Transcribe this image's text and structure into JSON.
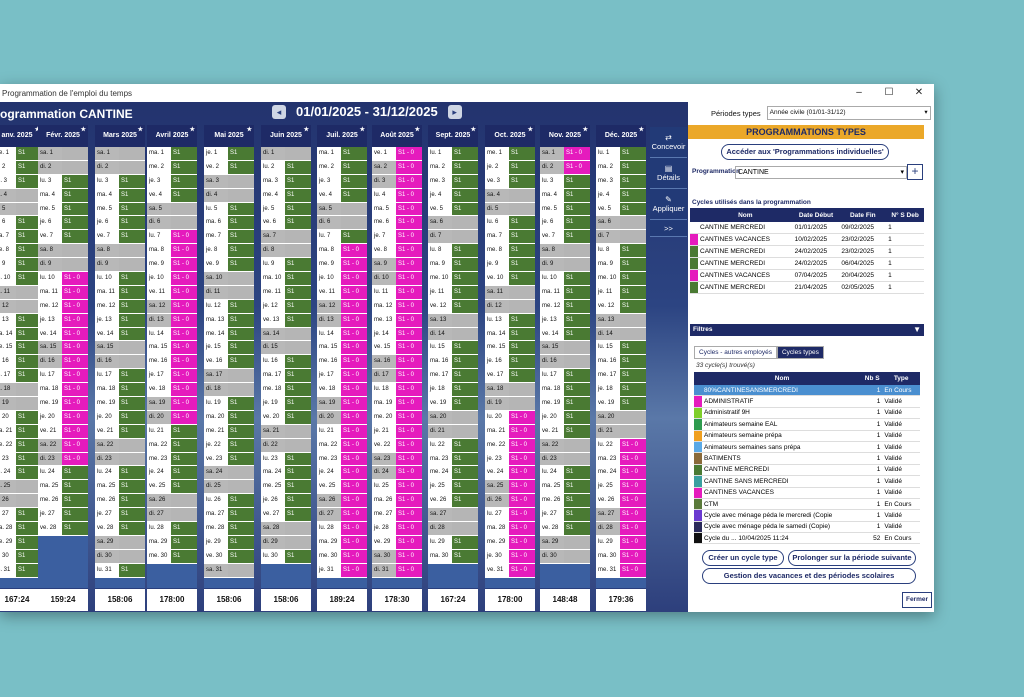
{
  "window": {
    "title": "Programmation de l'emploi du temps"
  },
  "header": {
    "programmation_title": "ogrammation CANTINE",
    "date_range": "01/01/2025 - 31/12/2025"
  },
  "months": [
    {
      "label": "anv. 2025",
      "total": "167:24",
      "start_day": 2,
      "ndays": 31,
      "pink": [],
      "gray_days": [
        0,
        1,
        4,
        5,
        6,
        7,
        8,
        9,
        12,
        13,
        14,
        15,
        16,
        19,
        20,
        21,
        22,
        23,
        26,
        27,
        28,
        29,
        30
      ]
    },
    {
      "label": "Févr. 2025",
      "total": "159:24",
      "start_day": 5,
      "ndays": 28,
      "pink": [
        9,
        10,
        11,
        12,
        13,
        14,
        15,
        16,
        17,
        18,
        19,
        20,
        21,
        22
      ],
      "gray_days": []
    },
    {
      "label": "Mars 2025",
      "total": "158:06",
      "start_day": 5,
      "ndays": 31,
      "pink": [],
      "gray_days": []
    },
    {
      "label": "Avril 2025",
      "total": "178:00",
      "start_day": 1,
      "ndays": 30,
      "pink": [
        6,
        7,
        8,
        9,
        10,
        11,
        12,
        13,
        14,
        15,
        16,
        17,
        18,
        19
      ],
      "gray_days": []
    },
    {
      "label": "Mai 2025",
      "total": "158:06",
      "start_day": 3,
      "ndays": 31,
      "pink": [],
      "gray_days": []
    },
    {
      "label": "Juin 2025",
      "total": "158:06",
      "start_day": 6,
      "ndays": 30,
      "pink": [],
      "gray_days": []
    },
    {
      "label": "Juil. 2025",
      "total": "189:24",
      "start_day": 1,
      "ndays": 31,
      "pink": [
        7,
        8,
        9,
        10,
        11,
        12,
        13,
        14,
        15,
        16,
        17,
        18,
        19,
        20,
        21,
        22,
        23,
        24,
        25,
        26,
        27,
        28,
        29,
        30
      ],
      "gray_days": []
    },
    {
      "label": "Août 2025",
      "total": "178:30",
      "start_day": 4,
      "ndays": 31,
      "pink": [
        0,
        1,
        2,
        3,
        4,
        5,
        6,
        7,
        8,
        9,
        10,
        11,
        12,
        13,
        14,
        15,
        16,
        17,
        18,
        19,
        20,
        21,
        22,
        23,
        24,
        25,
        26,
        27,
        28,
        29,
        30
      ],
      "gray_days": []
    },
    {
      "label": "Sept. 2025",
      "total": "167:24",
      "start_day": 0,
      "ndays": 30,
      "pink": [],
      "gray_days": []
    },
    {
      "label": "Oct. 2025",
      "total": "178:00",
      "start_day": 2,
      "ndays": 31,
      "pink": [
        19,
        20,
        21,
        22,
        23,
        24,
        25,
        26,
        27,
        28,
        29,
        30
      ],
      "gray_days": []
    },
    {
      "label": "Nov. 2025",
      "total": "148:48",
      "start_day": 5,
      "ndays": 30,
      "pink": [
        0,
        1
      ],
      "gray_days": []
    },
    {
      "label": "Déc. 2025",
      "total": "179:36",
      "start_day": 0,
      "ndays": 31,
      "pink": [
        21,
        22,
        23,
        24,
        25,
        26,
        27,
        28,
        29,
        30
      ],
      "gray_days": []
    }
  ],
  "day_abbr": [
    "lu.",
    "ma.",
    "me.",
    "je.",
    "ve.",
    "sa.",
    "di."
  ],
  "cell_label": "S1 - 0",
  "side_buttons": [
    "Concevoir",
    "Détails",
    "Appliquer",
    ">>"
  ],
  "right": {
    "periodes_label": "Périodes types",
    "periodes_value": "Année civile (01/01-31/12)",
    "prog_types_title": "PROGRAMMATIONS TYPES",
    "acceder_btn": "Accéder aux 'Programmations individuelles'",
    "programmation_label": "Programmation",
    "programmation_value": "CANTINE",
    "cycles_label": "Cycles utilisés dans la programmation",
    "cycles_cols": [
      "Nom",
      "Date Début",
      "Date Fin",
      "N° S Deb"
    ],
    "cycles_rows": [
      {
        "color": "#ffffff",
        "nom": "CANTINE MERCREDI",
        "debut": "01/01/2025",
        "fin": "09/02/2025",
        "n": "1"
      },
      {
        "color": "#e51bbd",
        "nom": "CANTINES VACANCES",
        "debut": "10/02/2025",
        "fin": "23/02/2025",
        "n": "1"
      },
      {
        "color": "#4a7a33",
        "nom": "CANTINE MERCREDI",
        "debut": "24/02/2025",
        "fin": "23/02/2025",
        "n": "1"
      },
      {
        "color": "#4a7a33",
        "nom": "CANTINE MERCREDI",
        "debut": "24/02/2025",
        "fin": "06/04/2025",
        "n": "1"
      },
      {
        "color": "#e51bbd",
        "nom": "CANTINES VACANCES",
        "debut": "07/04/2025",
        "fin": "20/04/2025",
        "n": "1"
      },
      {
        "color": "#4a7a33",
        "nom": "CANTINE MERCREDI",
        "debut": "21/04/2025",
        "fin": "02/05/2025",
        "n": "1"
      }
    ],
    "filtres": "Filtres",
    "tab1": "Cycles - autres employés",
    "tab2": "Cycles types",
    "count": "33 cycle(s) trouvé(s)",
    "types_cols": [
      "Nom",
      "Nb S",
      "Type"
    ],
    "types_rows": [
      {
        "color": "#4a8fd0",
        "nom": "80%CANTINESANSMERCREDI",
        "nb": "1",
        "type": "En Cours",
        "sel": true
      },
      {
        "color": "#e51bbd",
        "nom": "ADMINISTRATIF",
        "nb": "1",
        "type": "Validé"
      },
      {
        "color": "#7fcf2a",
        "nom": "Administratif 9H",
        "nb": "1",
        "type": "Validé"
      },
      {
        "color": "#2e9b4e",
        "nom": "Animateurs semaine EAL",
        "nb": "1",
        "type": "Validé"
      },
      {
        "color": "#f0a020",
        "nom": "Animateurs semaine prépa",
        "nb": "1",
        "type": "Validé"
      },
      {
        "color": "#5aa9e6",
        "nom": "Animateurs semaines sans prépa",
        "nb": "1",
        "type": "Validé"
      },
      {
        "color": "#8a6a3a",
        "nom": "BATIMENTS",
        "nb": "1",
        "type": "Validé"
      },
      {
        "color": "#4a7a33",
        "nom": "CANTINE MERCREDI",
        "nb": "1",
        "type": "Validé"
      },
      {
        "color": "#3aa0a0",
        "nom": "CANTINE SANS MERCREDI",
        "nb": "1",
        "type": "Validé"
      },
      {
        "color": "#e51bbd",
        "nom": "CANTINES VACANCES",
        "nb": "1",
        "type": "Validé"
      },
      {
        "color": "#5a7a3a",
        "nom": "CTM",
        "nb": "1",
        "type": "En Cours"
      },
      {
        "color": "#6a3ad0",
        "nom": "Cycle avec ménage péda le mercredi  (Copie",
        "nb": "1",
        "type": "Validé"
      },
      {
        "color": "#2a2a5a",
        "nom": "Cycle avec ménage péda le samedi  (Copie)",
        "nb": "1",
        "type": "Validé"
      },
      {
        "color": "#111111",
        "nom": "Cycle du ... 10/04/2025 11:24",
        "nb": "52",
        "type": "En Cours"
      }
    ],
    "btn_creer": "Créer un cycle type",
    "btn_prolonger": "Prolonger sur la période suivante",
    "btn_gestion": "Gestion des vacances et des périodes scolaires",
    "btn_fermer": "Fermer"
  }
}
